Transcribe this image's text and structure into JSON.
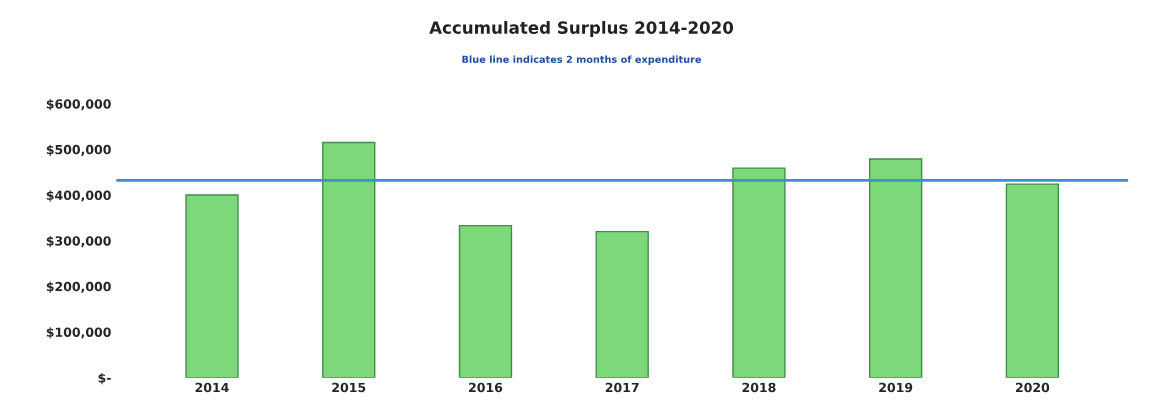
{
  "chart_data": {
    "type": "bar",
    "title": "Accumulated Surplus 2014-2020",
    "subtitle": "Blue line indicates 2 months of expenditure",
    "categories": [
      "2014",
      "2015",
      "2016",
      "2017",
      "2018",
      "2019",
      "2020"
    ],
    "values": [
      400000,
      515000,
      333000,
      320000,
      459000,
      479000,
      424000
    ],
    "color": "#7dd87a",
    "ylim": [
      0,
      600000
    ],
    "yticks": [
      {
        "value": 0,
        "label": "$-"
      },
      {
        "value": 100000,
        "label": "$100,000"
      },
      {
        "value": 200000,
        "label": "$200,000"
      },
      {
        "value": 300000,
        "label": "$300,000"
      },
      {
        "value": 400000,
        "label": "$400,000"
      },
      {
        "value": 500000,
        "label": "$500,000"
      },
      {
        "value": 600000,
        "label": "$600,000"
      }
    ],
    "ref_lines": [
      {
        "axis": "y",
        "value": 432000,
        "color": "#3b8fd6",
        "line_style": "solid"
      }
    ],
    "grid": false,
    "legend": false
  }
}
